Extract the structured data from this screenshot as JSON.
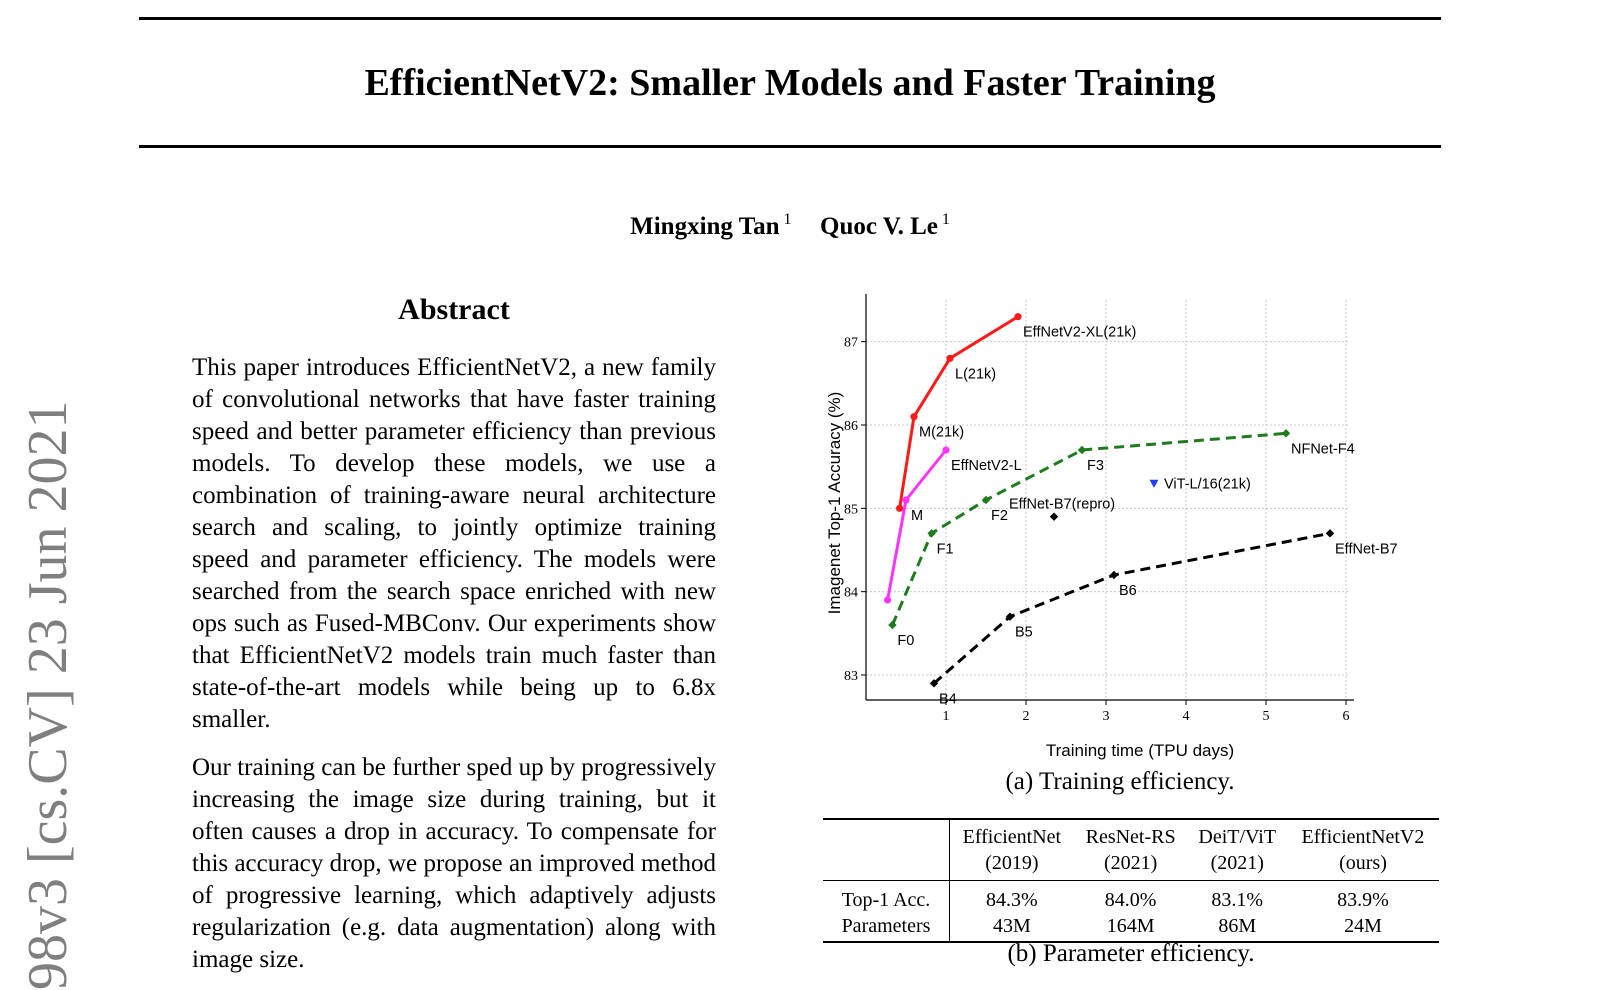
{
  "paper": {
    "title": "EfficientNetV2: Smaller Models and Faster Training",
    "authors": [
      {
        "name": "Mingxing Tan",
        "affil": "1"
      },
      {
        "name": "Quoc V. Le",
        "affil": "1"
      }
    ],
    "arxiv_stamp": "98v3  [cs.CV]  23 Jun 2021"
  },
  "abstract": {
    "heading": "Abstract",
    "paragraphs": [
      "This paper introduces EfficientNetV2, a new family of convolutional networks that have faster training speed and better parameter efficiency than previous models. To develop these models, we use a combination of training-aware neural architecture search and scaling, to jointly optimize training speed and parameter efficiency. The models were searched from the search space enriched with new ops such as Fused-MBConv. Our experiments show that EfficientNetV2 models train much faster than state-of-the-art models while being up to 6.8x smaller.",
      "Our training can be further sped up by progressively increasing the image size during training, but it often causes a drop in accuracy. To compensate for this accuracy drop, we propose an improved method of progressive learning, which adaptively adjusts regularization (e.g. data augmentation) along with image size."
    ]
  },
  "chart_data": {
    "type": "line",
    "xlabel": "Training time (TPU days)",
    "ylabel": "Imagenet Top-1 Accuracy (%)",
    "xlim": [
      0.0,
      6.05
    ],
    "ylim": [
      82.7,
      87.5
    ],
    "xticks": [
      "1",
      "2",
      "3",
      "4",
      "5",
      "6"
    ],
    "yticks": [
      "83",
      "84",
      "85",
      "86",
      "87"
    ],
    "grid": true,
    "series": [
      {
        "color": "#ff1a1a",
        "dash": false,
        "marker": "circle",
        "points": [
          {
            "x": 0.42,
            "y": 85.0,
            "label": ""
          },
          {
            "x": 0.6,
            "y": 86.1,
            "label": "M(21k)"
          },
          {
            "x": 1.05,
            "y": 86.8,
            "label": "L(21k)"
          },
          {
            "x": 1.9,
            "y": 87.3,
            "label": "EffNetV2-XL(21k)"
          }
        ]
      },
      {
        "color": "#ff33ff",
        "dash": false,
        "marker": "circle",
        "points": [
          {
            "x": 0.27,
            "y": 83.9,
            "label": ""
          },
          {
            "x": 0.5,
            "y": 85.1,
            "label": "M"
          },
          {
            "x": 1.0,
            "y": 85.7,
            "label": "EffNetV2-L"
          }
        ]
      },
      {
        "color": "#1e7b1e",
        "dash": true,
        "marker": "diamond",
        "points": [
          {
            "x": 0.33,
            "y": 83.6,
            "label": "F0"
          },
          {
            "x": 0.82,
            "y": 84.7,
            "label": "F1"
          },
          {
            "x": 1.5,
            "y": 85.1,
            "label": "F2"
          },
          {
            "x": 2.7,
            "y": 85.7,
            "label": "F3"
          },
          {
            "x": 5.25,
            "y": 85.9,
            "label": "NFNet-F4"
          }
        ]
      },
      {
        "color": "#000000",
        "dash": true,
        "marker": "diamond",
        "points": [
          {
            "x": 0.85,
            "y": 82.9,
            "label": "B4"
          },
          {
            "x": 1.8,
            "y": 83.7,
            "label": "B5"
          },
          {
            "x": 3.1,
            "y": 84.2,
            "label": "B6"
          },
          {
            "x": 5.8,
            "y": 84.7,
            "label": "EffNet-B7"
          }
        ]
      }
    ],
    "singles": [
      {
        "x": 2.35,
        "y": 84.9,
        "label": "EffNet-B7(repro)",
        "color": "#000000",
        "marker": "diamond"
      },
      {
        "x": 3.6,
        "y": 85.3,
        "label": "ViT-L/16(21k)",
        "color": "#1f3fff",
        "marker": "triangle-down"
      }
    ]
  },
  "figure": {
    "caption_a": "(a) Training efficiency.",
    "caption_b": "(b) Parameter efficiency."
  },
  "param_table": {
    "columns": [
      {
        "name": "EfficientNet",
        "year": "(2019)"
      },
      {
        "name": "ResNet-RS",
        "year": "(2021)"
      },
      {
        "name": "DeiT/ViT",
        "year": "(2021)"
      },
      {
        "name": "EfficientNetV2",
        "year": "(ours)"
      }
    ],
    "rows": [
      {
        "label": "Top-1 Acc.",
        "values": [
          "84.3%",
          "84.0%",
          "83.1%",
          "83.9%"
        ]
      },
      {
        "label": "Parameters",
        "values": [
          "43M",
          "164M",
          "86M",
          "24M"
        ]
      }
    ]
  }
}
